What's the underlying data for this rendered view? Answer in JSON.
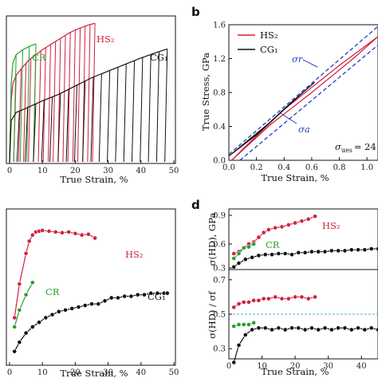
{
  "panels": [
    {
      "id": "a",
      "title": "",
      "xlabel": "True Strain, %",
      "ylabel": "",
      "xlim": [
        0,
        50
      ],
      "ylim": [
        0,
        1.75
      ],
      "xticks": [
        "0",
        "10",
        "20",
        "30",
        "40",
        "50"
      ],
      "yticks": [
        "",
        "",
        "",
        ""
      ],
      "series_labels": [
        {
          "text": "CR",
          "color": "#2a9d2a",
          "x": 6,
          "y": 1.5
        },
        {
          "text": "HS₂",
          "color": "#d11f3f",
          "x": 24,
          "y": 1.7
        },
        {
          "text": "CG₁",
          "color": "#111111",
          "x": 47,
          "y": 1.5
        }
      ]
    },
    {
      "id": "b",
      "title": "b",
      "xlabel": "True Strain, %",
      "ylabel": "True Stress, GPa",
      "xlim": [
        0,
        1.08
      ],
      "ylim": [
        0,
        1.6
      ],
      "xticks": [
        "0.0",
        "0.2",
        "0.4",
        "0.6",
        "0.8",
        "1.0"
      ],
      "yticks": [
        "0.0",
        "0.4",
        "0.8",
        "1.2",
        "1.6"
      ],
      "legend": [
        {
          "text": "HS₂",
          "color": "#d11f3f"
        },
        {
          "text": "CG₁",
          "color": "#111111"
        }
      ],
      "annotations": [
        {
          "text": "σr",
          "color": "#1f3fbf"
        },
        {
          "text": "σa",
          "color": "#1f3fbf"
        },
        {
          "text": "σ",
          "sub": "ues",
          "value": "= 24",
          "color": "#111111"
        }
      ]
    },
    {
      "id": "c",
      "title": "",
      "xlabel": "True Strain, %",
      "ylabel": "",
      "xlim": [
        0,
        50
      ],
      "ylim": [
        0,
        1
      ],
      "xticks": [
        "0",
        "10",
        "20",
        "30",
        "40",
        "50"
      ],
      "yticks": [
        "",
        "",
        "",
        "",
        "",
        "",
        ""
      ],
      "series_labels": [
        {
          "text": "HS₂",
          "color": "#d11f3f"
        },
        {
          "text": "CR",
          "color": "#2a9d2a"
        },
        {
          "text": "CG₁",
          "color": "#111111"
        }
      ]
    },
    {
      "id": "d",
      "title": "d",
      "xlabel": "True Strain, %",
      "top_ylabel": "σ(HD), GPa",
      "bottom_ylabel": "σ(HD) / σf",
      "xlim": [
        0,
        45
      ],
      "top_ylim": [
        0.35,
        0.95
      ],
      "bottom_ylim": [
        0.25,
        0.75
      ],
      "xticks": [
        "0",
        "10",
        "20",
        "30",
        "40"
      ],
      "top_yticks": [
        "0.9",
        "0.6",
        "0.3"
      ],
      "bottom_yticks": [
        "0.7",
        "0.5",
        "0.3"
      ],
      "series_labels": [
        {
          "text": "HS₂",
          "color": "#d11f3f"
        },
        {
          "text": "CR",
          "color": "#2a9d2a"
        }
      ]
    }
  ],
  "colors": {
    "HS2": "#d11f3f",
    "CR": "#2a9d2a",
    "CG1": "#111111",
    "envelope": "#1f3fbf"
  },
  "chart_data": [
    {
      "panel": "a",
      "type": "line",
      "series": [
        {
          "name": "HS₂",
          "color": "#d11f3f",
          "x": [
            0.5,
            1,
            2,
            4,
            6,
            8,
            10,
            12,
            14,
            16,
            18,
            20,
            22,
            24,
            26
          ],
          "y": [
            0.75,
            0.95,
            1.05,
            1.15,
            1.24,
            1.3,
            1.36,
            1.41,
            1.46,
            1.51,
            1.56,
            1.6,
            1.63,
            1.66,
            1.68
          ],
          "unload_strains": [
            2,
            3.5,
            5,
            6.5,
            8,
            9.5,
            11,
            12.5,
            14,
            15.5,
            17,
            18.5,
            20,
            21.5,
            23,
            24.5,
            26
          ]
        },
        {
          "name": "CR",
          "color": "#2a9d2a",
          "x": [
            0.5,
            1,
            2,
            4,
            6,
            8
          ],
          "y": [
            0.95,
            1.2,
            1.3,
            1.36,
            1.4,
            1.43
          ],
          "unload_strains": [
            2,
            4,
            6,
            8
          ]
        },
        {
          "name": "CG₁",
          "color": "#111111",
          "x": [
            0.5,
            2,
            5,
            10,
            15,
            20,
            25,
            30,
            35,
            40,
            45,
            48
          ],
          "y": [
            0.5,
            0.6,
            0.65,
            0.74,
            0.82,
            0.92,
            1.02,
            1.1,
            1.18,
            1.26,
            1.33,
            1.37
          ],
          "unload_strains": [
            3,
            5.5,
            8,
            10.5,
            13,
            15.5,
            18,
            20.5,
            23,
            25.5,
            28,
            30.5,
            33,
            35.5,
            38,
            40.5,
            43,
            45.5,
            48
          ]
        }
      ]
    },
    {
      "panel": "b",
      "type": "line",
      "xlabel": "True Strain, %",
      "ylabel": "True Stress, GPa",
      "series": [
        {
          "name": "HS₂",
          "color": "#d11f3f",
          "x": [
            0.02,
            0.3,
            0.6,
            0.9,
            1.08,
            0.8,
            0.4,
            0.1,
            0.02
          ],
          "y": [
            0.0,
            0.42,
            0.8,
            1.2,
            1.46,
            1.12,
            0.6,
            0.13,
            0.0
          ]
        },
        {
          "name": "CG₁",
          "color": "#111111",
          "x": [
            0.0,
            0.3,
            0.55,
            0.62,
            0.45,
            0.2,
            0.0
          ],
          "y": [
            0.05,
            0.45,
            0.82,
            0.92,
            0.68,
            0.3,
            0.05
          ]
        },
        {
          "name": "σr",
          "color": "#1f3fbf",
          "style": "dashed",
          "x": [
            0.0,
            1.08
          ],
          "y": [
            0.07,
            1.58
          ]
        },
        {
          "name": "σa",
          "color": "#1f3fbf",
          "style": "dashed",
          "x": [
            0.08,
            1.08
          ],
          "y": [
            0.0,
            1.36
          ]
        }
      ]
    },
    {
      "panel": "c",
      "type": "line",
      "series": [
        {
          "name": "HS₂",
          "color": "#d11f3f",
          "x": [
            1.5,
            3,
            5,
            6,
            7,
            8,
            9,
            10,
            12,
            14,
            16,
            18,
            20,
            22,
            24,
            26
          ],
          "y": [
            0.3,
            0.52,
            0.72,
            0.8,
            0.84,
            0.86,
            0.865,
            0.87,
            0.865,
            0.86,
            0.855,
            0.86,
            0.85,
            0.84,
            0.845,
            0.82
          ]
        },
        {
          "name": "CR",
          "color": "#2a9d2a",
          "x": [
            1.5,
            3,
            5,
            7
          ],
          "y": [
            0.24,
            0.35,
            0.45,
            0.53
          ]
        },
        {
          "name": "CG₁",
          "color": "#111111",
          "x": [
            1.5,
            3,
            5,
            7,
            9,
            11,
            13,
            15,
            17,
            19,
            21,
            23,
            25,
            27,
            29,
            31,
            33,
            35,
            37,
            39,
            41,
            43,
            45,
            47,
            48
          ],
          "y": [
            0.08,
            0.14,
            0.2,
            0.24,
            0.27,
            0.3,
            0.32,
            0.34,
            0.35,
            0.36,
            0.37,
            0.38,
            0.39,
            0.39,
            0.41,
            0.43,
            0.43,
            0.44,
            0.44,
            0.45,
            0.45,
            0.46,
            0.46,
            0.46,
            0.46
          ]
        }
      ]
    },
    {
      "panel": "d-top",
      "type": "line",
      "ylabel": "σ(HD), GPa",
      "series": [
        {
          "name": "HS₂",
          "color": "#d11f3f",
          "x": [
            1.5,
            3,
            4.5,
            6,
            7.5,
            9,
            10.5,
            12,
            14,
            16,
            18,
            20,
            22,
            24,
            26
          ],
          "y": [
            0.5,
            0.52,
            0.56,
            0.6,
            0.62,
            0.67,
            0.72,
            0.75,
            0.77,
            0.78,
            0.8,
            0.82,
            0.84,
            0.86,
            0.89
          ]
        },
        {
          "name": "CR",
          "color": "#2a9d2a",
          "x": [
            1.5,
            3,
            4.5,
            6,
            7.5
          ],
          "y": [
            0.45,
            0.5,
            0.56,
            0.57,
            0.6
          ]
        },
        {
          "name": "CG₁",
          "color": "#111111",
          "x": [
            1.5,
            3,
            5,
            7,
            9,
            11,
            13,
            15,
            17,
            19,
            21,
            23,
            25,
            27,
            29,
            31,
            33,
            35,
            37,
            39,
            41,
            43,
            45
          ],
          "y": [
            0.36,
            0.4,
            0.44,
            0.46,
            0.48,
            0.49,
            0.49,
            0.5,
            0.5,
            0.49,
            0.51,
            0.51,
            0.52,
            0.52,
            0.52,
            0.53,
            0.53,
            0.53,
            0.54,
            0.54,
            0.54,
            0.55,
            0.55
          ]
        }
      ]
    },
    {
      "panel": "d-bottom",
      "type": "line",
      "ylabel": "σ(HD) / σf",
      "reference_line": {
        "y": 0.5,
        "color": "#4fb3e0",
        "style": "dashed"
      },
      "series": [
        {
          "name": "HS₂",
          "color": "#d11f3f",
          "x": [
            1.5,
            3,
            4.5,
            6,
            7.5,
            9,
            10.5,
            12,
            14,
            16,
            18,
            20,
            22,
            24,
            26
          ],
          "y": [
            0.54,
            0.56,
            0.57,
            0.57,
            0.58,
            0.58,
            0.59,
            0.59,
            0.6,
            0.59,
            0.59,
            0.6,
            0.6,
            0.59,
            0.6
          ]
        },
        {
          "name": "CR",
          "color": "#2a9d2a",
          "x": [
            1.5,
            3,
            4.5,
            6,
            7.5
          ],
          "y": [
            0.43,
            0.44,
            0.44,
            0.44,
            0.45
          ]
        },
        {
          "name": "CG₁",
          "color": "#111111",
          "x": [
            1.5,
            3,
            5,
            7,
            9,
            11,
            13,
            15,
            17,
            19,
            21,
            23,
            25,
            27,
            29,
            31,
            33,
            35,
            37,
            39,
            41,
            43,
            45
          ],
          "y": [
            0.22,
            0.32,
            0.38,
            0.41,
            0.42,
            0.42,
            0.41,
            0.42,
            0.41,
            0.42,
            0.42,
            0.41,
            0.42,
            0.41,
            0.42,
            0.41,
            0.42,
            0.42,
            0.41,
            0.42,
            0.41,
            0.42,
            0.41
          ]
        }
      ]
    }
  ]
}
